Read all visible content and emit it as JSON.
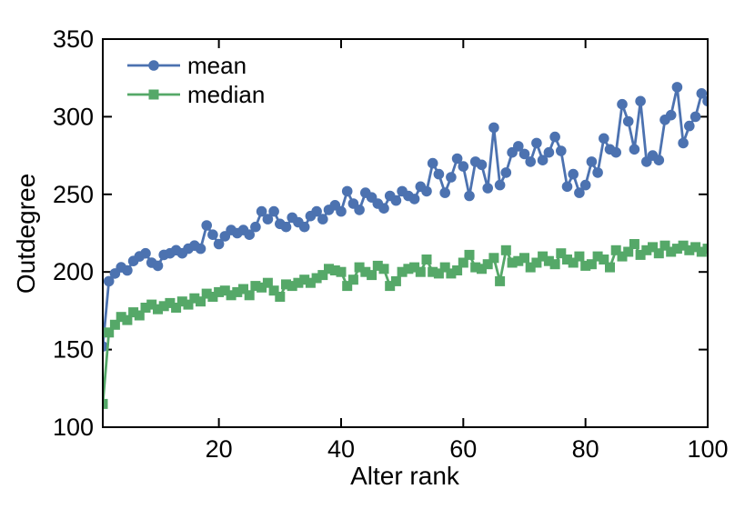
{
  "chart_data": {
    "type": "line",
    "title": "",
    "xlabel": "Alter rank",
    "ylabel": "Outdegree",
    "xlim": [
      1,
      100
    ],
    "ylim": [
      100,
      350
    ],
    "xticks": [
      20,
      40,
      60,
      80,
      100
    ],
    "yticks": [
      100,
      150,
      200,
      250,
      300,
      350
    ],
    "grid": false,
    "legend_position": "upper-left",
    "x": [
      1,
      2,
      3,
      4,
      5,
      6,
      7,
      8,
      9,
      10,
      11,
      12,
      13,
      14,
      15,
      16,
      17,
      18,
      19,
      20,
      21,
      22,
      23,
      24,
      25,
      26,
      27,
      28,
      29,
      30,
      31,
      32,
      33,
      34,
      35,
      36,
      37,
      38,
      39,
      40,
      41,
      42,
      43,
      44,
      45,
      46,
      47,
      48,
      49,
      50,
      51,
      52,
      53,
      54,
      55,
      56,
      57,
      58,
      59,
      60,
      61,
      62,
      63,
      64,
      65,
      66,
      67,
      68,
      69,
      70,
      71,
      72,
      73,
      74,
      75,
      76,
      77,
      78,
      79,
      80,
      81,
      82,
      83,
      84,
      85,
      86,
      87,
      88,
      89,
      90,
      91,
      92,
      93,
      94,
      95,
      96,
      97,
      98,
      99,
      100
    ],
    "series": [
      {
        "name": "mean",
        "color": "#4C72B0",
        "marker": "circle",
        "values": [
          152,
          194,
          199,
          203,
          201,
          207,
          210,
          212,
          206,
          204,
          211,
          212,
          214,
          212,
          215,
          217,
          215,
          230,
          224,
          218,
          223,
          227,
          225,
          227,
          224,
          229,
          239,
          234,
          239,
          231,
          229,
          235,
          232,
          229,
          236,
          239,
          234,
          240,
          243,
          239,
          252,
          244,
          240,
          251,
          248,
          244,
          241,
          249,
          246,
          252,
          249,
          247,
          255,
          252,
          270,
          263,
          251,
          261,
          273,
          268,
          249,
          271,
          269,
          254,
          293,
          256,
          264,
          277,
          281,
          276,
          271,
          283,
          272,
          277,
          287,
          278,
          255,
          263,
          251,
          256,
          271,
          264,
          286,
          279,
          277,
          308,
          297,
          279,
          310,
          271,
          275,
          272,
          298,
          301,
          319,
          283,
          294,
          300,
          315,
          310
        ]
      },
      {
        "name": "median",
        "color": "#55A868",
        "marker": "square",
        "values": [
          115,
          161,
          166,
          171,
          169,
          174,
          172,
          177,
          179,
          176,
          178,
          180,
          177,
          181,
          179,
          183,
          181,
          186,
          184,
          187,
          188,
          185,
          187,
          189,
          185,
          191,
          190,
          193,
          188,
          184,
          192,
          191,
          193,
          195,
          193,
          196,
          198,
          202,
          201,
          200,
          191,
          195,
          203,
          200,
          198,
          204,
          202,
          191,
          194,
          200,
          202,
          203,
          200,
          208,
          200,
          199,
          203,
          199,
          201,
          206,
          211,
          203,
          202,
          205,
          209,
          194,
          214,
          206,
          207,
          209,
          203,
          206,
          210,
          207,
          205,
          212,
          208,
          206,
          210,
          204,
          205,
          210,
          208,
          203,
          214,
          210,
          213,
          218,
          211,
          214,
          216,
          212,
          217,
          213,
          215,
          217,
          214,
          216,
          213,
          215
        ]
      }
    ]
  },
  "colors": {
    "axis": "#000000",
    "background": "#ffffff",
    "mean": "#4C72B0",
    "median": "#55A868"
  }
}
